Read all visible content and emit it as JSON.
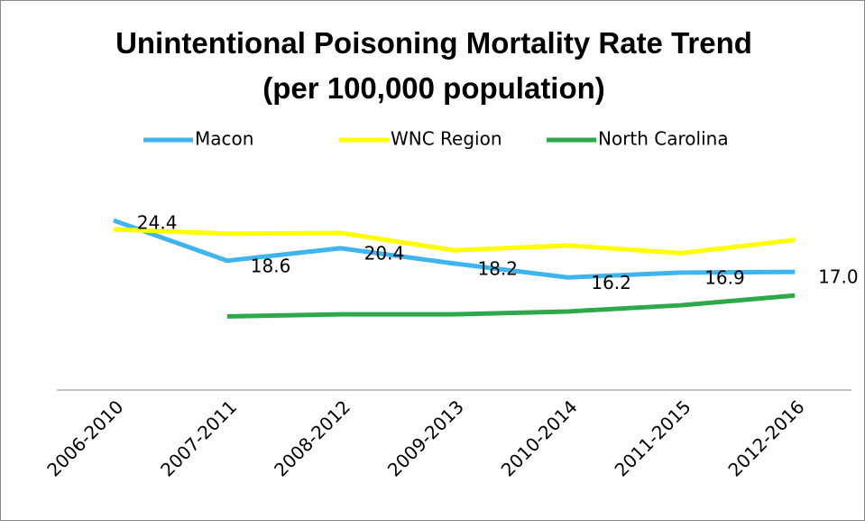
{
  "chart_data": {
    "type": "line",
    "title": "Unintentional Poisoning Mortality Rate Trend (per 100,000 population)",
    "categories": [
      "2006-2010",
      "2007-2011",
      "2008-2012",
      "2009-2013",
      "2010-2014",
      "2011-2015",
      "2012-2016"
    ],
    "series": [
      {
        "name": "Macon",
        "color": "#3fb4ee",
        "values": [
          24.4,
          18.6,
          20.4,
          18.2,
          16.2,
          16.9,
          17
        ],
        "value_labels": [
          "24.4",
          "18.6",
          "20.4",
          "18.2",
          "16.2",
          "16.9",
          "17.0"
        ]
      },
      {
        "name": "WNC Region",
        "color": "#ffff00",
        "values": [
          23.1,
          22.5,
          22.6,
          20.1,
          20.8,
          19.7,
          21.6
        ]
      },
      {
        "name": "North Carolina",
        "color": "#2ea84a",
        "values": [
          null,
          10.6,
          10.9,
          10.9,
          11.3,
          12.2,
          13.6
        ]
      }
    ],
    "ylim": [
      0,
      30
    ],
    "legend": "top"
  }
}
